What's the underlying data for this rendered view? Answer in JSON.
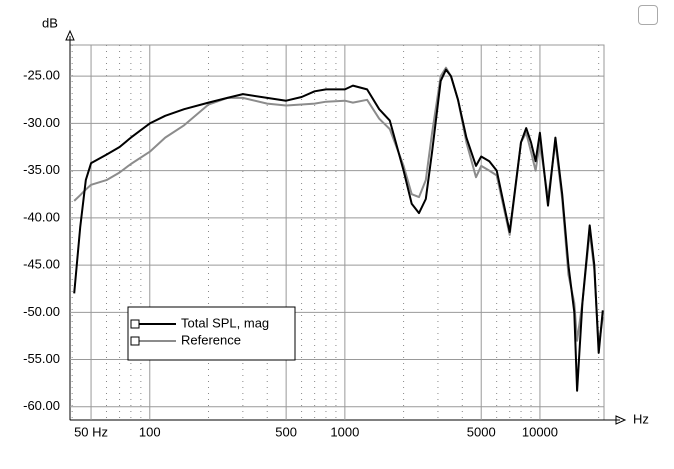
{
  "chart_data": {
    "type": "line",
    "x_label": "Hz",
    "y_label": "dB",
    "xlog": true,
    "grid": true,
    "legend": "lower-left",
    "xlim": [
      39,
      21300
    ],
    "ylim": [
      -61.4,
      -21.7
    ],
    "xticks": [
      {
        "value": 50,
        "label": "50 Hz"
      },
      100,
      500,
      1000,
      5000,
      10000
    ],
    "xminorticks": [
      40,
      60,
      70,
      80,
      90,
      200,
      300,
      400,
      600,
      700,
      800,
      900,
      2000,
      3000,
      4000,
      6000,
      7000,
      8000,
      9000,
      20000
    ],
    "yticks": [
      {
        "value": -25,
        "label": "-25.00"
      },
      {
        "value": -30,
        "label": "-30.00"
      },
      {
        "value": -35,
        "label": "-35.00"
      },
      {
        "value": -40,
        "label": "-40.00"
      },
      {
        "value": -45,
        "label": "-45.00"
      },
      {
        "value": -50,
        "label": "-50.00"
      },
      {
        "value": -55,
        "label": "-55.00"
      },
      {
        "value": -60,
        "label": "-60.00"
      }
    ],
    "x": [
      41,
      44,
      47,
      50,
      60,
      70,
      80,
      100,
      120,
      150,
      200,
      250,
      300,
      400,
      500,
      600,
      700,
      800,
      1000,
      1100,
      1300,
      1500,
      1700,
      2000,
      2200,
      2400,
      2600,
      2800,
      3100,
      3300,
      3500,
      3800,
      4200,
      4700,
      5000,
      5500,
      6000,
      7000,
      8000,
      8500,
      9000,
      9500,
      10000,
      11000,
      12000,
      13000,
      14000,
      15000,
      15500,
      16500,
      18000,
      19000,
      20000,
      21000
    ],
    "series": [
      {
        "name": "Total SPL, mag",
        "color": "#000000",
        "values": [
          -48,
          -41,
          -36,
          -34.2,
          -33.3,
          -32.5,
          -31.5,
          -30,
          -29.2,
          -28.5,
          -27.8,
          -27.3,
          -26.9,
          -27.3,
          -27.6,
          -27.2,
          -26.6,
          -26.4,
          -26.4,
          -26,
          -26.4,
          -28.5,
          -29.7,
          -35,
          -38.5,
          -39.5,
          -38,
          -33,
          -25.5,
          -24.3,
          -25,
          -27.5,
          -31.5,
          -34.5,
          -33.5,
          -34,
          -35,
          -41.5,
          -32,
          -30.5,
          -32,
          -34,
          -31,
          -38.7,
          -31.5,
          -37.5,
          -45,
          -50,
          -58.3,
          -49,
          -40.8,
          -45,
          -54.3,
          -49.8
        ]
      },
      {
        "name": "Reference",
        "color": "#8c8c8c",
        "values": [
          -38.2,
          -37.6,
          -37,
          -36.5,
          -36,
          -35.2,
          -34.3,
          -33,
          -31.5,
          -30.2,
          -28,
          -27.3,
          -27.3,
          -27.9,
          -28.1,
          -28,
          -27.9,
          -27.7,
          -27.6,
          -27.8,
          -27.5,
          -29.5,
          -30.6,
          -34.5,
          -37.5,
          -37.8,
          -36,
          -31,
          -25,
          -24.1,
          -25,
          -27.5,
          -32,
          -35.7,
          -34.5,
          -35,
          -35.5,
          -41.8,
          -32,
          -31,
          -33,
          -35,
          -32,
          -38,
          -32,
          -38,
          -46,
          -49,
          -53,
          -49,
          -41.5,
          -45.5,
          -53.6,
          -50.5
        ]
      }
    ]
  }
}
